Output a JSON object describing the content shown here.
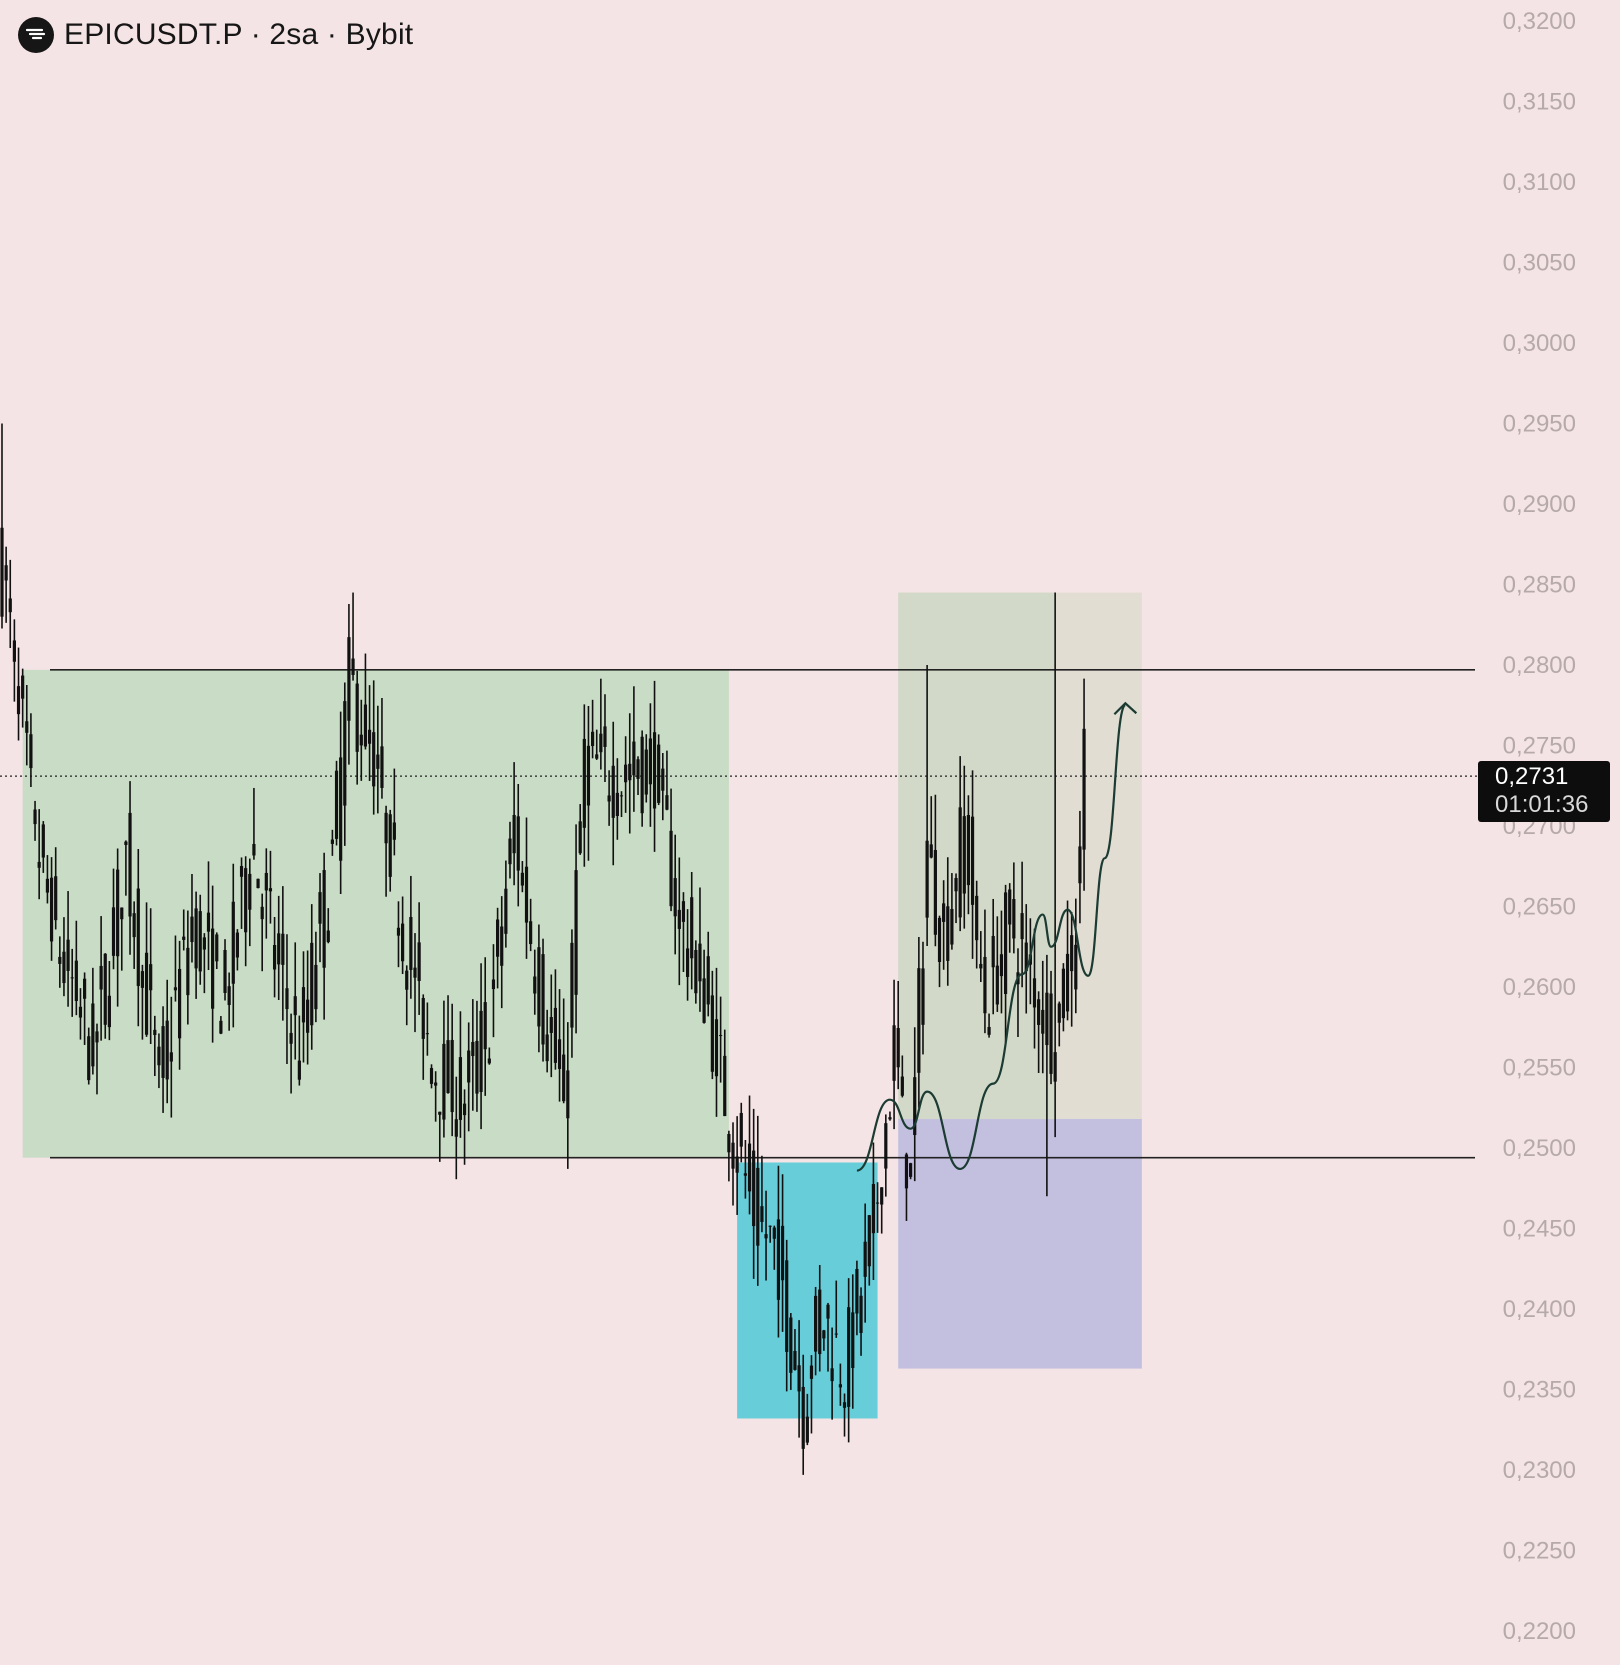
{
  "header": {
    "title": "EPICUSDT.P · 2sa · Bybit",
    "logo_icon": "bybit-logo-icon"
  },
  "price_badge": {
    "price": "0,2731",
    "countdown": "01:01:36"
  },
  "colors": {
    "background": "#f5e4e5",
    "range_zone": "#c9dcc5",
    "demand_zone": "#66cdd9",
    "target_zone": "#e1ddd3",
    "stop_zone": "#c3bfdf",
    "entry_overlap": "#d0d8c6",
    "candles": "#111111",
    "projection": "#1b3b33",
    "axis_text": "#b5a9aa"
  },
  "chart_data": {
    "type": "candlestick",
    "symbol": "EPICUSDT.P",
    "interval": "2sa",
    "exchange": "Bybit",
    "ylim": [
      0.2175,
      0.3215
    ],
    "y_ticks": [
      "0,3200",
      "0,3150",
      "0,3100",
      "0,3050",
      "0,3000",
      "0,2950",
      "0,2900",
      "0,2850",
      "0,2800",
      "0,2750",
      "0,2700",
      "0,2650",
      "0,2600",
      "0,2550",
      "0,2500",
      "0,2450",
      "0,2400",
      "0,2350",
      "0,2300",
      "0,2250",
      "0,2200"
    ],
    "last_price": 0.2731,
    "levels": [
      {
        "price": 0.2797,
        "style": "solid"
      },
      {
        "price": 0.2494,
        "style": "solid"
      },
      {
        "price": 0.2731,
        "style": "dotted"
      }
    ],
    "zones": [
      {
        "kind": "range",
        "from_bar": 5,
        "to_bar": 176,
        "top": 0.2797,
        "bottom": 0.2494
      },
      {
        "kind": "demand",
        "from_bar": 178,
        "to_bar": 212,
        "top": 0.2491,
        "bottom": 0.2332
      },
      {
        "kind": "target",
        "from_bar": 217,
        "to_bar": 276,
        "top": 0.2845,
        "bottom": 0.2518
      },
      {
        "kind": "stop",
        "from_bar": 217,
        "to_bar": 276,
        "top": 0.2518,
        "bottom": 0.2363
      }
    ],
    "price_path_points": [
      [
        0,
        0.286
      ],
      [
        8,
        0.269
      ],
      [
        14,
        0.262
      ],
      [
        22,
        0.256
      ],
      [
        30,
        0.268
      ],
      [
        38,
        0.254
      ],
      [
        46,
        0.264
      ],
      [
        54,
        0.259
      ],
      [
        60,
        0.269
      ],
      [
        66,
        0.262
      ],
      [
        72,
        0.256
      ],
      [
        80,
        0.268
      ],
      [
        84,
        0.279
      ],
      [
        90,
        0.274
      ],
      [
        96,
        0.265
      ],
      [
        104,
        0.255
      ],
      [
        112,
        0.253
      ],
      [
        118,
        0.258
      ],
      [
        124,
        0.27
      ],
      [
        130,
        0.26
      ],
      [
        136,
        0.253
      ],
      [
        141,
        0.274
      ],
      [
        150,
        0.273
      ],
      [
        158,
        0.274
      ],
      [
        164,
        0.264
      ],
      [
        170,
        0.26
      ],
      [
        176,
        0.252
      ],
      [
        182,
        0.246
      ],
      [
        188,
        0.243
      ],
      [
        194,
        0.234
      ],
      [
        198,
        0.24
      ],
      [
        204,
        0.236
      ],
      [
        211,
        0.245
      ],
      [
        216,
        0.256
      ],
      [
        220,
        0.248
      ],
      [
        224,
        0.269
      ],
      [
        228,
        0.263
      ],
      [
        233,
        0.27
      ],
      [
        238,
        0.259
      ],
      [
        244,
        0.264
      ],
      [
        250,
        0.26
      ],
      [
        255,
        0.257
      ],
      [
        260,
        0.264
      ],
      [
        262,
        0.275
      ]
    ],
    "notable_wicks": [
      {
        "bar": 0,
        "high": 0.295
      },
      {
        "bar": 85,
        "high": 0.2845
      },
      {
        "bar": 194,
        "low": 0.2297
      },
      {
        "bar": 224,
        "high": 0.28
      },
      {
        "bar": 253,
        "low": 0.247
      },
      {
        "bar": 255,
        "high": 0.2845
      }
    ],
    "projection_path": [
      [
        207,
        0.2486
      ],
      [
        215,
        0.253
      ],
      [
        220,
        0.2512
      ],
      [
        224,
        0.2535
      ],
      [
        232,
        0.2487
      ],
      [
        240,
        0.254
      ],
      [
        247,
        0.2608
      ],
      [
        252,
        0.2645
      ],
      [
        254,
        0.2625
      ],
      [
        258,
        0.2648
      ],
      [
        263,
        0.2607
      ],
      [
        267,
        0.268
      ],
      [
        272,
        0.2775
      ]
    ]
  }
}
